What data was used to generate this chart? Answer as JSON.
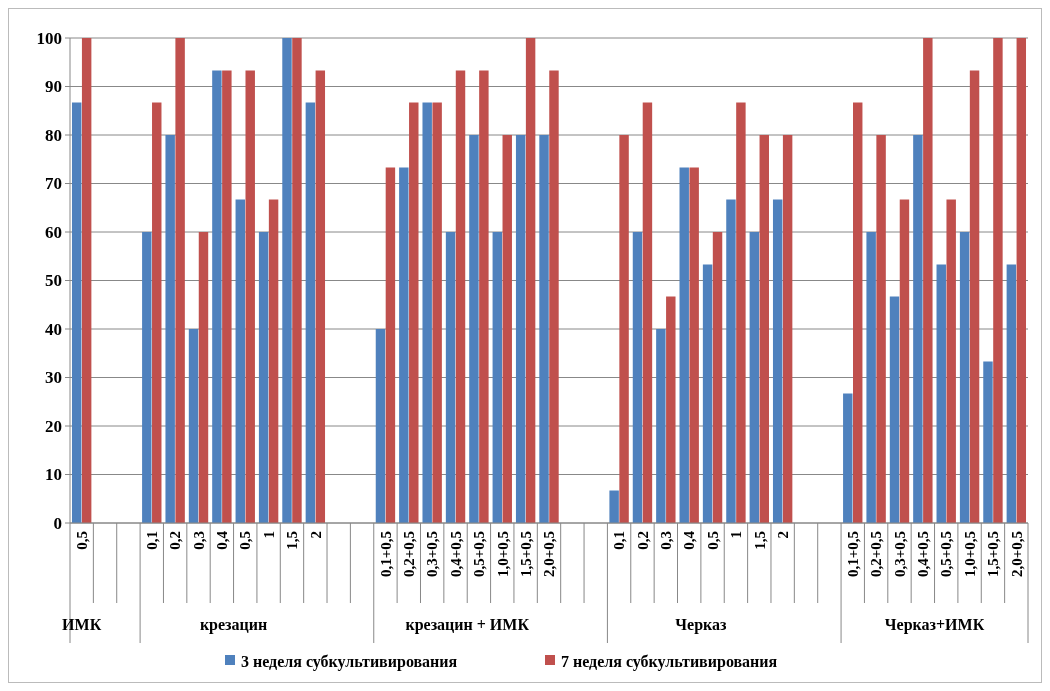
{
  "chart_data": {
    "type": "bar",
    "categories": [
      "0,5",
      null,
      null,
      "0,1",
      "0,2",
      "0,3",
      "0,4",
      "0,5",
      "1",
      "1,5",
      "2",
      null,
      null,
      "0,1+0,5",
      "0,2+0,5",
      "0,3+0,5",
      "0,4+0,5",
      "0,5+0,5",
      "1,0+0,5",
      "1,5+0,5",
      "2,0+0,5",
      null,
      null,
      "0,1",
      "0,2",
      "0,3",
      "0,4",
      "0,5",
      "1",
      "1,5",
      "2",
      null,
      null,
      "0,1+0,5",
      "0,2+0,5",
      "0,3+0,5",
      "0,4+0,5",
      "0,5+0,5",
      "1,0+0,5",
      "1,5+0,5",
      "2,0+0,5"
    ],
    "series": [
      {
        "name": "3 неделя субкультивирования",
        "color": "#4f81bd",
        "values": [
          86.7,
          null,
          null,
          60,
          80,
          40,
          93.3,
          66.7,
          60,
          100,
          86.7,
          null,
          null,
          40,
          73.3,
          86.7,
          60,
          80,
          60,
          80,
          80,
          null,
          null,
          6.7,
          60,
          40,
          73.3,
          53.3,
          66.7,
          60,
          66.7,
          null,
          null,
          26.7,
          60,
          46.7,
          80,
          53.3,
          60,
          33.3,
          53.3
        ]
      },
      {
        "name": "7 неделя субкультивирования",
        "color": "#c0504d",
        "values": [
          100,
          null,
          null,
          86.7,
          100,
          60,
          93.3,
          93.3,
          66.7,
          100,
          93.3,
          null,
          null,
          73.3,
          86.7,
          86.7,
          93.3,
          93.3,
          80,
          100,
          93.3,
          null,
          null,
          80,
          86.7,
          46.7,
          73.3,
          60,
          86.7,
          80,
          80,
          null,
          null,
          86.7,
          80,
          66.7,
          100,
          66.7,
          93.3,
          100,
          100
        ]
      }
    ],
    "annotations": [
      "ИМК",
      "крезацин",
      "крезацин + ИМК",
      "Черказ",
      "Черказ+ИМК"
    ],
    "ylim": [
      0,
      100
    ],
    "yticks": [
      0,
      10,
      20,
      30,
      40,
      50,
      60,
      70,
      80,
      90,
      100
    ],
    "grid": "y",
    "legend": "bottom"
  }
}
